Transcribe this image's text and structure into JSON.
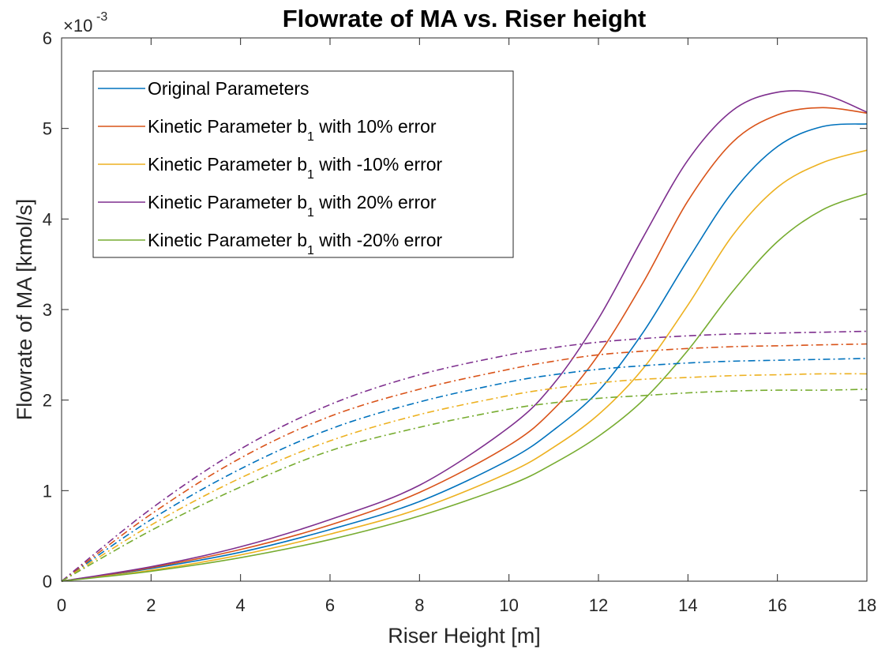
{
  "chart_data": {
    "type": "line",
    "title": "Flowrate of MA vs. Riser height",
    "xlabel": "Riser Height [m]",
    "ylabel": "Flowrate of MA [kmol/s]",
    "y_exponent": {
      "base": "×10",
      "power": "-3"
    },
    "xlim": [
      0,
      18
    ],
    "ylim": [
      0,
      6
    ],
    "x_ticks": [
      0,
      2,
      4,
      6,
      8,
      10,
      12,
      14,
      16,
      18
    ],
    "y_ticks": [
      0,
      1,
      2,
      3,
      4,
      5,
      6
    ],
    "grid": false,
    "legend_position": "top-left",
    "legend": [
      {
        "text": "Original Parameters",
        "sub": "",
        "suffix": "",
        "color": "#0072BD"
      },
      {
        "text": "Kinetic Parameter b",
        "sub": "1",
        "suffix": " with 10% error",
        "color": "#D95319"
      },
      {
        "text": "Kinetic Parameter b",
        "sub": "1",
        "suffix": " with -10% error",
        "color": "#EDB120"
      },
      {
        "text": "Kinetic Parameter b",
        "sub": "1",
        "suffix": " with 20% error",
        "color": "#7E2F8E"
      },
      {
        "text": "Kinetic Parameter b",
        "sub": "1",
        "suffix": " with -20% error",
        "color": "#77AC30"
      }
    ],
    "x": [
      0,
      2,
      4,
      6,
      8,
      10,
      11,
      12,
      13,
      14,
      15,
      16,
      17,
      18
    ],
    "series": [
      {
        "legend_index": 0,
        "color": "#0072BD",
        "style": "solid",
        "values": [
          0,
          0.14,
          0.32,
          0.57,
          0.88,
          1.34,
          1.67,
          2.1,
          2.75,
          3.55,
          4.3,
          4.8,
          5.02,
          5.05
        ]
      },
      {
        "legend_index": 1,
        "color": "#D95319",
        "style": "solid",
        "values": [
          0,
          0.15,
          0.35,
          0.62,
          0.98,
          1.5,
          1.9,
          2.5,
          3.3,
          4.2,
          4.85,
          5.15,
          5.23,
          5.17
        ]
      },
      {
        "legend_index": 2,
        "color": "#EDB120",
        "style": "solid",
        "values": [
          0,
          0.12,
          0.29,
          0.52,
          0.8,
          1.2,
          1.48,
          1.84,
          2.35,
          3.05,
          3.82,
          4.35,
          4.62,
          4.76
        ]
      },
      {
        "legend_index": 3,
        "color": "#7E2F8E",
        "style": "solid",
        "values": [
          0,
          0.16,
          0.38,
          0.68,
          1.06,
          1.7,
          2.18,
          2.9,
          3.8,
          4.65,
          5.2,
          5.4,
          5.38,
          5.18
        ]
      },
      {
        "legend_index": 4,
        "color": "#77AC30",
        "style": "solid",
        "values": [
          0,
          0.11,
          0.26,
          0.46,
          0.72,
          1.06,
          1.3,
          1.6,
          2.0,
          2.55,
          3.2,
          3.75,
          4.1,
          4.28
        ]
      },
      {
        "legend_index": 0,
        "color": "#0072BD",
        "style": "dashdot",
        "values": [
          0,
          0.68,
          1.24,
          1.68,
          1.98,
          2.2,
          2.28,
          2.34,
          2.38,
          2.41,
          2.43,
          2.44,
          2.45,
          2.46
        ]
      },
      {
        "legend_index": 1,
        "color": "#D95319",
        "style": "dashdot",
        "values": [
          0,
          0.74,
          1.36,
          1.82,
          2.12,
          2.34,
          2.43,
          2.5,
          2.54,
          2.57,
          2.59,
          2.6,
          2.61,
          2.62
        ]
      },
      {
        "legend_index": 2,
        "color": "#EDB120",
        "style": "dashdot",
        "values": [
          0,
          0.62,
          1.14,
          1.55,
          1.84,
          2.05,
          2.13,
          2.19,
          2.23,
          2.25,
          2.27,
          2.28,
          2.29,
          2.29
        ]
      },
      {
        "legend_index": 3,
        "color": "#7E2F8E",
        "style": "dashdot",
        "values": [
          0,
          0.8,
          1.46,
          1.95,
          2.28,
          2.5,
          2.58,
          2.64,
          2.68,
          2.71,
          2.73,
          2.74,
          2.75,
          2.76
        ]
      },
      {
        "legend_index": 4,
        "color": "#77AC30",
        "style": "dashdot",
        "values": [
          0,
          0.56,
          1.04,
          1.44,
          1.7,
          1.9,
          1.97,
          2.02,
          2.05,
          2.08,
          2.1,
          2.11,
          2.11,
          2.12
        ]
      }
    ]
  }
}
